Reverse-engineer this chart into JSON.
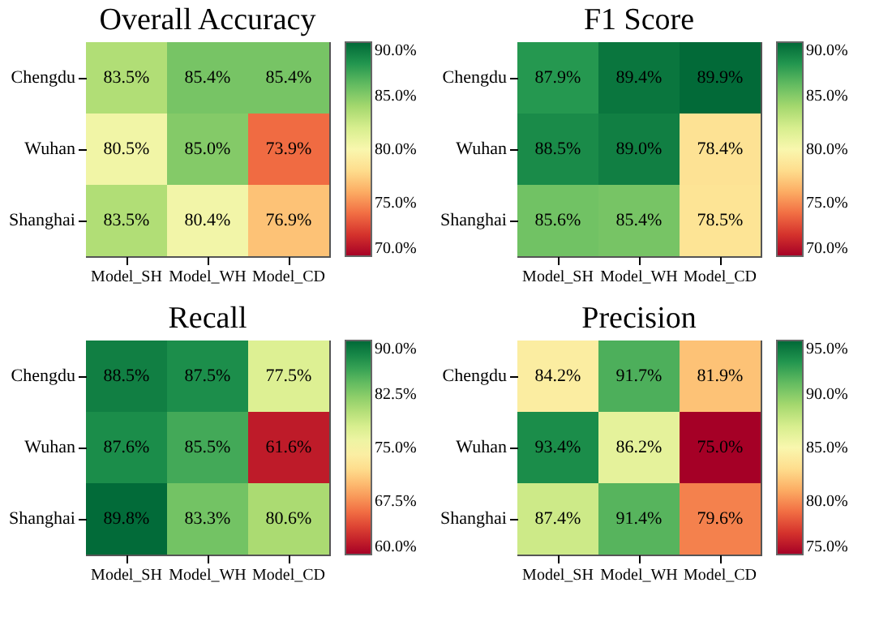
{
  "chart_data": [
    {
      "type": "heatmap",
      "title": "Overall Accuracy",
      "categories": [
        "Model_SH",
        "Model_WH",
        "Model_CD"
      ],
      "y_categories": [
        "Chengdu",
        "Wuhan",
        "Shanghai"
      ],
      "cells": [
        [
          83.5,
          85.4,
          85.4
        ],
        [
          80.5,
          85.0,
          73.9
        ],
        [
          83.5,
          80.4,
          76.9
        ]
      ],
      "cell_labels": [
        [
          "83.5%",
          "85.4%",
          "85.4%"
        ],
        [
          "80.5%",
          "85.0%",
          "73.9%"
        ],
        [
          "83.5%",
          "80.4%",
          "76.9%"
        ]
      ],
      "clim": [
        70,
        90
      ],
      "cticks": [
        {
          "value": 70,
          "label": "70.0%"
        },
        {
          "value": 75,
          "label": "75.0%"
        },
        {
          "value": 80,
          "label": "80.0%"
        },
        {
          "value": 85,
          "label": "85.0%"
        },
        {
          "value": 90,
          "label": "90.0%"
        }
      ]
    },
    {
      "type": "heatmap",
      "title": "F1 Score",
      "categories": [
        "Model_SH",
        "Model_WH",
        "Model_CD"
      ],
      "y_categories": [
        "Chengdu",
        "Wuhan",
        "Shanghai"
      ],
      "cells": [
        [
          87.9,
          89.4,
          89.9
        ],
        [
          88.5,
          89.0,
          78.4
        ],
        [
          85.6,
          85.4,
          78.5
        ]
      ],
      "cell_labels": [
        [
          "87.9%",
          "89.4%",
          "89.9%"
        ],
        [
          "88.5%",
          "89.0%",
          "78.4%"
        ],
        [
          "85.6%",
          "85.4%",
          "78.5%"
        ]
      ],
      "clim": [
        70,
        90
      ],
      "cticks": [
        {
          "value": 70,
          "label": "70.0%"
        },
        {
          "value": 75,
          "label": "75.0%"
        },
        {
          "value": 80,
          "label": "80.0%"
        },
        {
          "value": 85,
          "label": "85.0%"
        },
        {
          "value": 90,
          "label": "90.0%"
        }
      ]
    },
    {
      "type": "heatmap",
      "title": "Recall",
      "categories": [
        "Model_SH",
        "Model_WH",
        "Model_CD"
      ],
      "y_categories": [
        "Chengdu",
        "Wuhan",
        "Shanghai"
      ],
      "cells": [
        [
          88.5,
          87.5,
          77.5
        ],
        [
          87.6,
          85.5,
          61.6
        ],
        [
          89.8,
          83.3,
          80.6
        ]
      ],
      "cell_labels": [
        [
          "88.5%",
          "87.5%",
          "77.5%"
        ],
        [
          "87.6%",
          "85.5%",
          "61.6%"
        ],
        [
          "89.8%",
          "83.3%",
          "80.6%"
        ]
      ],
      "clim": [
        60,
        90
      ],
      "cticks": [
        {
          "value": 60,
          "label": "60.0%"
        },
        {
          "value": 67.5,
          "label": "67.5%"
        },
        {
          "value": 75,
          "label": "75.0%"
        },
        {
          "value": 82.5,
          "label": "82.5%"
        },
        {
          "value": 90,
          "label": "90.0%"
        }
      ]
    },
    {
      "type": "heatmap",
      "title": "Precision",
      "categories": [
        "Model_SH",
        "Model_WH",
        "Model_CD"
      ],
      "y_categories": [
        "Chengdu",
        "Wuhan",
        "Shanghai"
      ],
      "cells": [
        [
          84.2,
          91.7,
          81.9
        ],
        [
          93.4,
          86.2,
          75.0
        ],
        [
          87.4,
          91.4,
          79.6
        ]
      ],
      "cell_labels": [
        [
          "84.2%",
          "91.7%",
          "81.9%"
        ],
        [
          "93.4%",
          "86.2%",
          "75.0%"
        ],
        [
          "87.4%",
          "91.4%",
          "79.6%"
        ]
      ],
      "clim": [
        75,
        95
      ],
      "cticks": [
        {
          "value": 75,
          "label": "75.0%"
        },
        {
          "value": 80,
          "label": "80.0%"
        },
        {
          "value": 85,
          "label": "85.0%"
        },
        {
          "value": 90,
          "label": "90.0%"
        },
        {
          "value": 95,
          "label": "95.0%"
        }
      ]
    }
  ]
}
